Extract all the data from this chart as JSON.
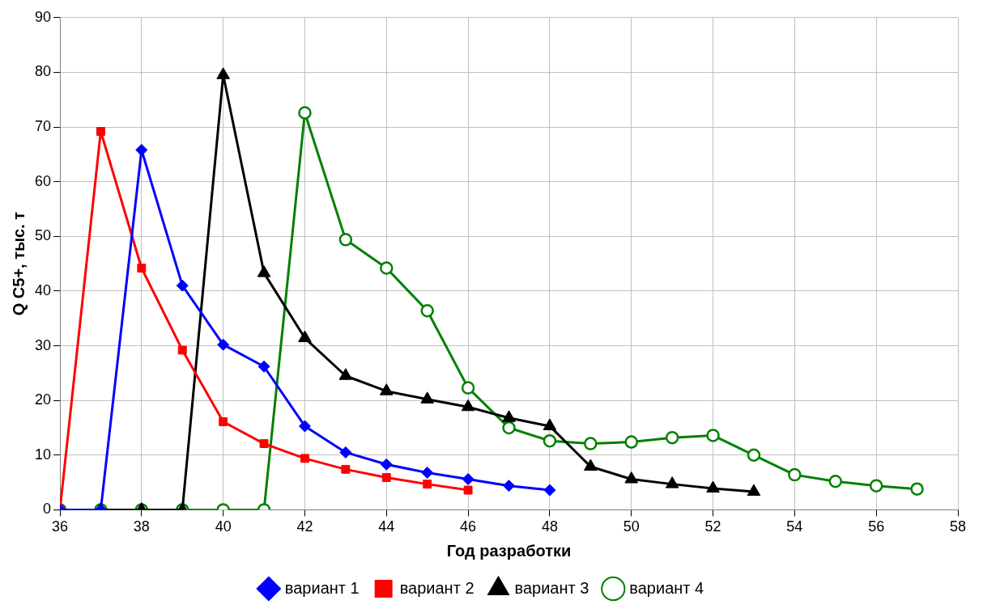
{
  "chart_data": {
    "type": "line",
    "xlabel": "Год разработки",
    "ylabel": "Q C5+, тыс. т",
    "xlim": [
      36,
      58
    ],
    "xticks": [
      36,
      38,
      40,
      42,
      44,
      46,
      48,
      50,
      52,
      54,
      56,
      58
    ],
    "ylim": [
      0,
      90
    ],
    "yticks": [
      0,
      10,
      20,
      30,
      40,
      50,
      60,
      70,
      80,
      90
    ],
    "grid": true,
    "legend": "bottom",
    "series": [
      {
        "name": "вариант 1",
        "color": "#0000ff",
        "marker": "diamond",
        "x": [
          36,
          37,
          38,
          39,
          40,
          41,
          42,
          43,
          44,
          45,
          46,
          47,
          48
        ],
        "values": [
          0,
          0,
          65.8,
          41,
          30.2,
          26.2,
          15.3,
          10.5,
          8.3,
          6.8,
          5.6,
          4.4,
          3.6
        ]
      },
      {
        "name": "вариант 2",
        "color": "#ff0000",
        "marker": "square",
        "x": [
          36,
          37,
          38,
          39,
          40,
          41,
          42,
          43,
          44,
          45,
          46
        ],
        "values": [
          0,
          69.2,
          44.2,
          29.2,
          16.1,
          12.1,
          9.4,
          7.4,
          5.9,
          4.7,
          3.6
        ]
      },
      {
        "name": "вариант 3",
        "color": "#000000",
        "marker": "triangle",
        "x": [
          36,
          37,
          38,
          39,
          40,
          41,
          42,
          43,
          44,
          45,
          46,
          47,
          48,
          49,
          50,
          51,
          52,
          53
        ],
        "values": [
          0,
          0,
          0,
          0,
          79.5,
          43.3,
          31.4,
          24.5,
          21.7,
          20.2,
          18.8,
          16.8,
          15.3,
          7.9,
          5.6,
          4.7,
          3.9,
          3.3
        ]
      },
      {
        "name": "вариант 4",
        "color": "#008000",
        "marker": "circle",
        "x": [
          36,
          37,
          38,
          39,
          40,
          41,
          42,
          43,
          44,
          45,
          46,
          47,
          48,
          49,
          50,
          51,
          52,
          53,
          54,
          55,
          56,
          57
        ],
        "values": [
          0,
          0,
          0,
          0,
          0,
          0,
          72.6,
          49.4,
          44.2,
          36.4,
          22.3,
          15,
          12.6,
          12.1,
          12.4,
          13.2,
          13.6,
          10,
          6.4,
          5.2,
          4.4,
          3.8
        ]
      }
    ]
  }
}
